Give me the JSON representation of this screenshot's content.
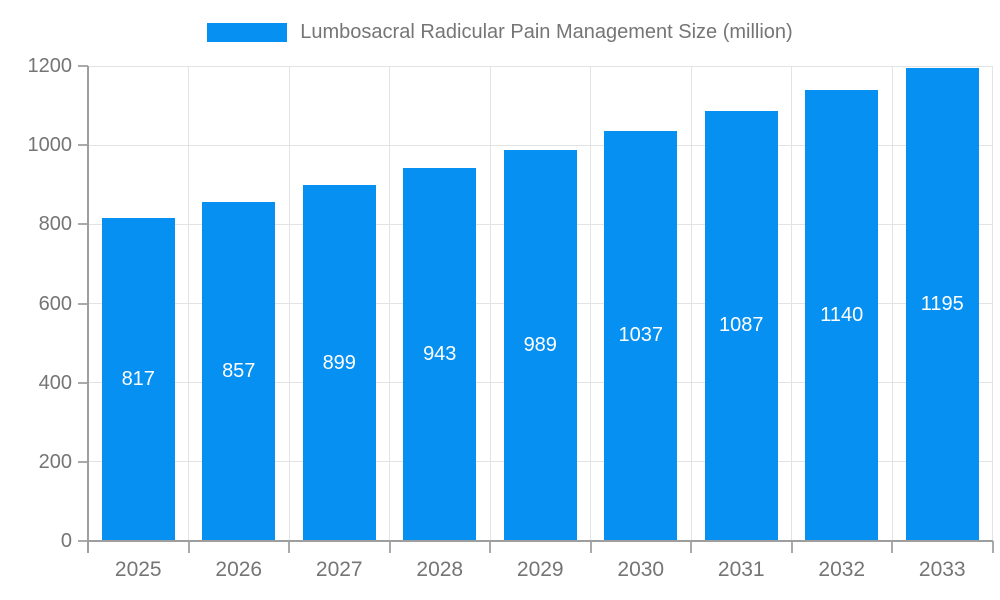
{
  "legend": {
    "label": "Lumbosacral Radicular Pain Management Size (million)"
  },
  "colors": {
    "bar": "#0590F2",
    "axis": "#9e9e9e",
    "grid": "#e3e3e3",
    "tick_text": "#757575",
    "value_label": "#ffffff"
  },
  "chart_data": {
    "type": "bar",
    "title": "Lumbosacral Radicular Pain Management Size (million)",
    "categories": [
      "2025",
      "2026",
      "2027",
      "2028",
      "2029",
      "2030",
      "2031",
      "2032",
      "2033"
    ],
    "values": [
      817,
      857,
      899,
      943,
      989,
      1037,
      1087,
      1140,
      1195
    ],
    "xlabel": "",
    "ylabel": "",
    "ylim": [
      0,
      1200
    ],
    "ytick_step": 200,
    "yticks": [
      "0",
      "200",
      "400",
      "600",
      "800",
      "1000",
      "1200"
    ],
    "grid": true,
    "legend_position": "top",
    "value_labels": "inside-center"
  }
}
